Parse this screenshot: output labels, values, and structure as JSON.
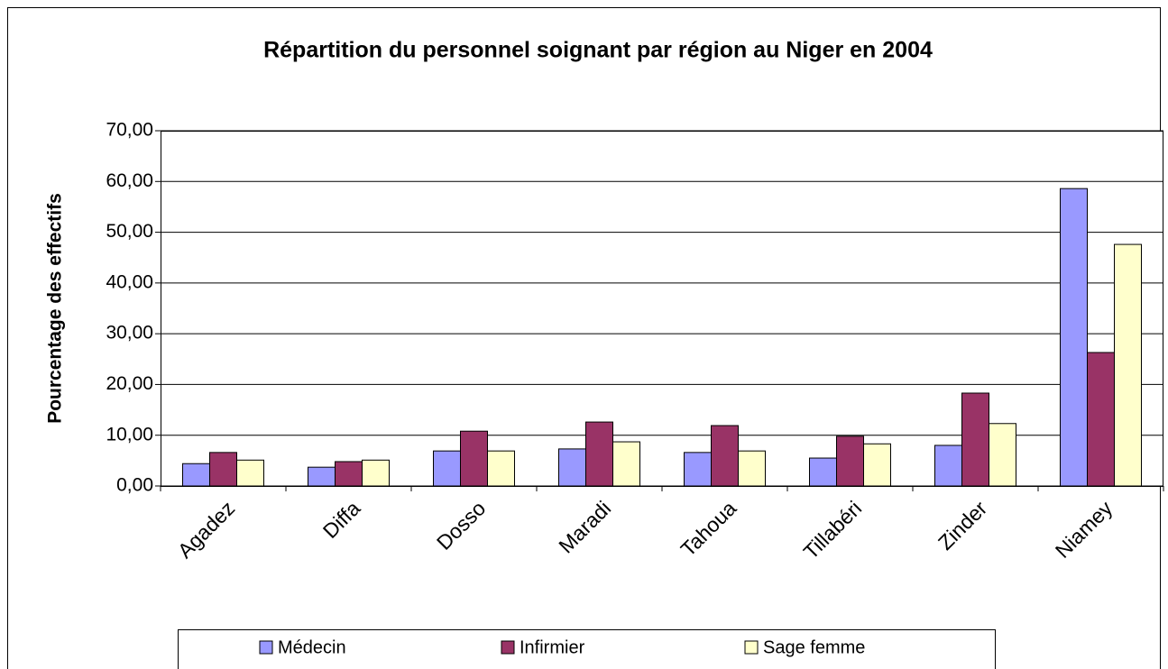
{
  "chart_data": {
    "type": "bar",
    "title": "Répartition du personnel soignant par région au Niger en 2004",
    "y_label": "Pourcentage des effectifs",
    "categories": [
      "Agadez",
      "Diffa",
      "Dosso",
      "Maradi",
      "Tahoua",
      "Tillabéri",
      "Zinder",
      "Niamey"
    ],
    "series": [
      {
        "name": "Médecin",
        "color": "#9999ff",
        "values": [
          4.4,
          3.7,
          6.9,
          7.3,
          6.6,
          5.5,
          8.0,
          58.6
        ]
      },
      {
        "name": "Infirmier",
        "color": "#993366",
        "values": [
          6.6,
          4.8,
          10.8,
          12.6,
          11.9,
          9.8,
          18.3,
          26.3
        ]
      },
      {
        "name": "Sage femme",
        "color": "#ffffcc",
        "values": [
          5.1,
          5.1,
          6.9,
          8.7,
          6.9,
          8.3,
          12.3,
          47.6
        ]
      }
    ],
    "ylim": [
      0,
      70
    ],
    "yticks": [
      {
        "value": 0,
        "label": "0,00"
      },
      {
        "value": 10,
        "label": "10,00"
      },
      {
        "value": 20,
        "label": "20,00"
      },
      {
        "value": 30,
        "label": "30,00"
      },
      {
        "value": 40,
        "label": "40,00"
      },
      {
        "value": 50,
        "label": "50,00"
      },
      {
        "value": 60,
        "label": "60,00"
      },
      {
        "value": 70,
        "label": "70,00"
      }
    ],
    "grid": true,
    "legend": "bottom"
  }
}
